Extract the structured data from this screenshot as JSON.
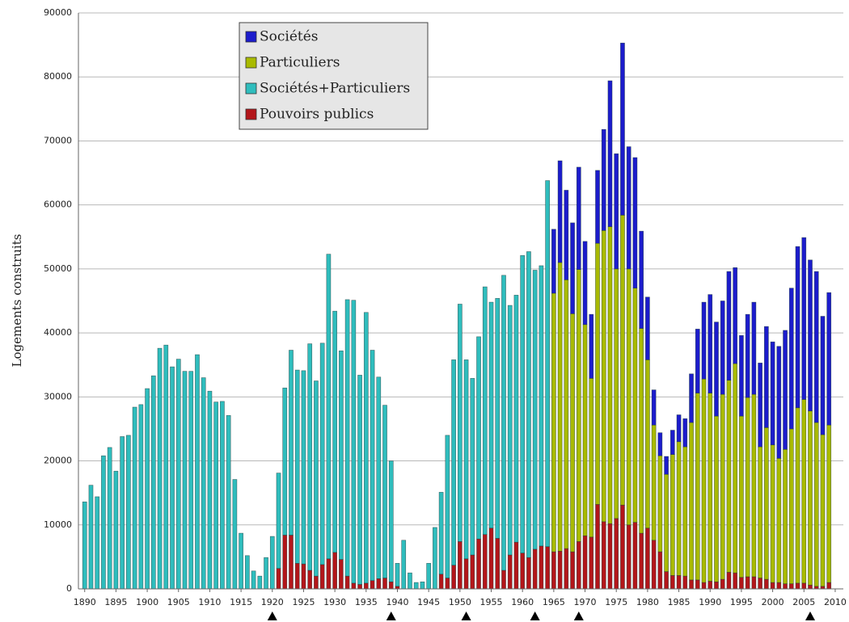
{
  "chart_data": {
    "type": "bar",
    "stacked": true,
    "y_label": "Logements construits",
    "x": [
      1890,
      1891,
      1892,
      1893,
      1894,
      1895,
      1896,
      1897,
      1898,
      1899,
      1900,
      1901,
      1902,
      1903,
      1904,
      1905,
      1906,
      1907,
      1908,
      1909,
      1910,
      1911,
      1912,
      1913,
      1914,
      1915,
      1916,
      1917,
      1918,
      1919,
      1920,
      1921,
      1922,
      1923,
      1924,
      1925,
      1926,
      1927,
      1928,
      1929,
      1930,
      1931,
      1932,
      1933,
      1934,
      1935,
      1936,
      1937,
      1938,
      1939,
      1940,
      1941,
      1942,
      1943,
      1944,
      1945,
      1946,
      1947,
      1948,
      1949,
      1950,
      1951,
      1952,
      1953,
      1954,
      1955,
      1956,
      1957,
      1958,
      1959,
      1960,
      1961,
      1962,
      1963,
      1964,
      1965,
      1966,
      1967,
      1968,
      1969,
      1970,
      1971,
      1972,
      1973,
      1974,
      1975,
      1976,
      1977,
      1978,
      1979,
      1980,
      1981,
      1982,
      1983,
      1984,
      1985,
      1986,
      1987,
      1988,
      1989,
      1990,
      1991,
      1992,
      1993,
      1994,
      1995,
      1996,
      1997,
      1998,
      1999,
      2000,
      2001,
      2002,
      2003,
      2004,
      2005,
      2006,
      2007,
      2008,
      2009
    ],
    "series": [
      {
        "name": "Pouvoirs publics",
        "color": "#b3161a",
        "values": [
          null,
          null,
          null,
          null,
          null,
          null,
          null,
          null,
          null,
          null,
          null,
          null,
          null,
          null,
          null,
          null,
          null,
          null,
          null,
          null,
          null,
          null,
          null,
          null,
          null,
          null,
          null,
          null,
          null,
          null,
          null,
          3200,
          8400,
          8400,
          4000,
          3900,
          2900,
          2000,
          3800,
          4700,
          5700,
          4600,
          2000,
          900,
          700,
          900,
          1300,
          1600,
          1700,
          1100,
          400,
          null,
          null,
          null,
          null,
          null,
          null,
          2300,
          1700,
          3700,
          7400,
          4700,
          5300,
          7800,
          8500,
          9500,
          7900,
          2900,
          5300,
          7300,
          5600,
          4900,
          6200,
          6700,
          6600,
          5800,
          5900,
          6300,
          5800,
          7400,
          8300,
          8100,
          13200,
          10500,
          10200,
          11000,
          13100,
          10000,
          10400,
          8700,
          9500,
          7600,
          5800,
          2700,
          2100,
          2100,
          2000,
          1400,
          1400,
          1000,
          1200,
          1100,
          1500,
          2600,
          2500,
          1800,
          1900,
          1900,
          1700,
          1500,
          1000,
          1000,
          800,
          800,
          900,
          900,
          600,
          400,
          400,
          1000
        ]
      },
      {
        "name": "Sociétés+Particuliers",
        "color": "#2fbdbd",
        "values": [
          13600,
          16200,
          14400,
          20800,
          22100,
          18400,
          23800,
          24000,
          28400,
          28800,
          31300,
          33300,
          37600,
          38100,
          34700,
          35900,
          34000,
          34000,
          36600,
          33000,
          30900,
          29200,
          29300,
          27100,
          17100,
          8700,
          5200,
          2800,
          2000,
          4900,
          8200,
          14900,
          23000,
          28900,
          30200,
          30200,
          35400,
          30500,
          34600,
          47600,
          37700,
          32600,
          43200,
          44200,
          32700,
          42300,
          36000,
          31500,
          27000,
          18900,
          3600,
          7600,
          2500,
          1000,
          1100,
          4000,
          9600,
          12800,
          22300,
          32100,
          37100,
          31100,
          27600,
          31600,
          38700,
          35300,
          37500,
          46100,
          39000,
          38600,
          46500,
          47800,
          43600,
          43800,
          57200,
          null,
          null,
          null,
          null,
          null,
          null,
          null,
          null,
          null,
          null,
          null,
          null,
          null,
          null,
          null,
          null,
          null,
          null,
          null,
          null,
          null,
          null,
          null,
          null,
          null,
          null,
          null,
          null,
          null,
          null,
          null,
          null,
          null,
          null,
          null,
          null,
          null,
          null,
          null,
          null,
          null,
          null,
          null,
          null,
          null
        ]
      },
      {
        "name": "Particuliers",
        "color": "#a9ba00",
        "values": [
          null,
          null,
          null,
          null,
          null,
          null,
          null,
          null,
          null,
          null,
          null,
          null,
          null,
          null,
          null,
          null,
          null,
          null,
          null,
          null,
          null,
          null,
          null,
          null,
          null,
          null,
          null,
          null,
          null,
          null,
          null,
          null,
          null,
          null,
          null,
          null,
          null,
          null,
          null,
          null,
          null,
          null,
          null,
          null,
          null,
          null,
          null,
          null,
          null,
          null,
          null,
          null,
          null,
          null,
          null,
          null,
          null,
          null,
          null,
          null,
          null,
          null,
          null,
          null,
          null,
          null,
          null,
          null,
          null,
          null,
          null,
          null,
          null,
          null,
          null,
          40400,
          45100,
          42000,
          37200,
          42500,
          33000,
          24800,
          40800,
          45500,
          46400,
          39000,
          45300,
          40000,
          36600,
          32000,
          26300,
          18000,
          15000,
          15200,
          18900,
          20900,
          20200,
          24600,
          29200,
          31800,
          29400,
          25900,
          28900,
          30000,
          32700,
          25200,
          28000,
          28500,
          20500,
          23700,
          21500,
          19400,
          21000,
          24200,
          27400,
          28700,
          27200,
          25600,
          23700,
          24600
        ]
      },
      {
        "name": "Sociétés",
        "color": "#1c1ccc",
        "values": [
          null,
          null,
          null,
          null,
          null,
          null,
          null,
          null,
          null,
          null,
          null,
          null,
          null,
          null,
          null,
          null,
          null,
          null,
          null,
          null,
          null,
          null,
          null,
          null,
          null,
          null,
          null,
          null,
          null,
          null,
          null,
          null,
          null,
          null,
          null,
          null,
          null,
          null,
          null,
          null,
          null,
          null,
          null,
          null,
          null,
          null,
          null,
          null,
          null,
          null,
          null,
          null,
          null,
          null,
          null,
          null,
          null,
          null,
          null,
          null,
          null,
          null,
          null,
          null,
          null,
          null,
          null,
          null,
          null,
          null,
          null,
          null,
          null,
          null,
          null,
          10000,
          15900,
          14000,
          14200,
          16000,
          13000,
          10000,
          11400,
          15800,
          22800,
          18000,
          26900,
          19100,
          20400,
          15200,
          9800,
          5500,
          3600,
          2800,
          3800,
          4200,
          4400,
          7600,
          10000,
          12000,
          15400,
          14700,
          14600,
          17000,
          15000,
          12600,
          13000,
          14400,
          13100,
          15800,
          16100,
          17500,
          18600,
          22000,
          25200,
          25300,
          23600,
          23600,
          18500,
          20700
        ]
      }
    ],
    "xlim": [
      1889,
      2011.3
    ],
    "xticks": [
      1890,
      1895,
      1900,
      1905,
      1910,
      1915,
      1920,
      1925,
      1930,
      1935,
      1940,
      1945,
      1950,
      1955,
      1960,
      1965,
      1970,
      1975,
      1980,
      1985,
      1990,
      1995,
      2000,
      2005,
      2010
    ],
    "x_markers": [
      1920,
      1939,
      1951,
      1962,
      1969,
      2006
    ],
    "ylim": [
      0,
      90000
    ],
    "yticks": [
      0,
      10000,
      20000,
      30000,
      40000,
      50000,
      60000,
      70000,
      80000,
      90000
    ],
    "grid": true,
    "legend": "top-left"
  }
}
